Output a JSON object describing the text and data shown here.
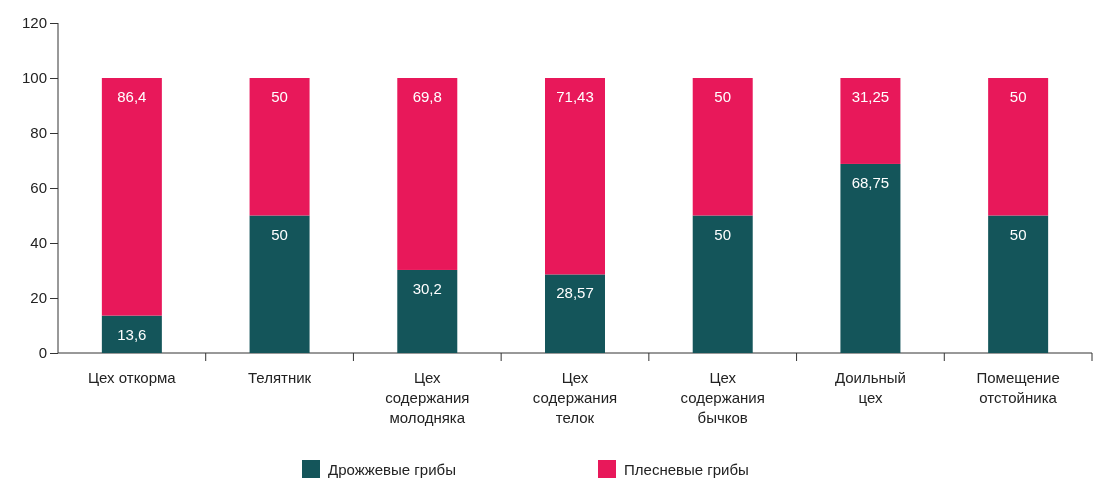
{
  "chart_data": {
    "type": "bar",
    "stacked": true,
    "categories": [
      "Цех откорма",
      "Телятник",
      "Цех\nсодержания\nмолодняка",
      "Цех\nсодержания\nтелок",
      "Цех\nсодержания\nбычков",
      "Доильный\nцех",
      "Помещение\nотстойника"
    ],
    "series": [
      {
        "name": "Дрожжевые грибы",
        "color": "#14555a",
        "values": [
          13.6,
          50,
          30.2,
          28.57,
          50,
          68.75,
          50
        ],
        "value_labels": [
          "13,6",
          "50",
          "30,2",
          "28,57",
          "50",
          "68,75",
          "50"
        ]
      },
      {
        "name": "Плесневые грибы",
        "color": "#e8185a",
        "values": [
          86.4,
          50,
          69.8,
          71.43,
          50,
          31.25,
          50
        ],
        "value_labels": [
          "86,4",
          "50",
          "69,8",
          "71,43",
          "50",
          "31,25",
          "50"
        ]
      }
    ],
    "ylim": [
      0,
      120
    ],
    "yticks": [
      0,
      20,
      40,
      60,
      80,
      100,
      120
    ],
    "grid": false,
    "legend": "bottom"
  }
}
